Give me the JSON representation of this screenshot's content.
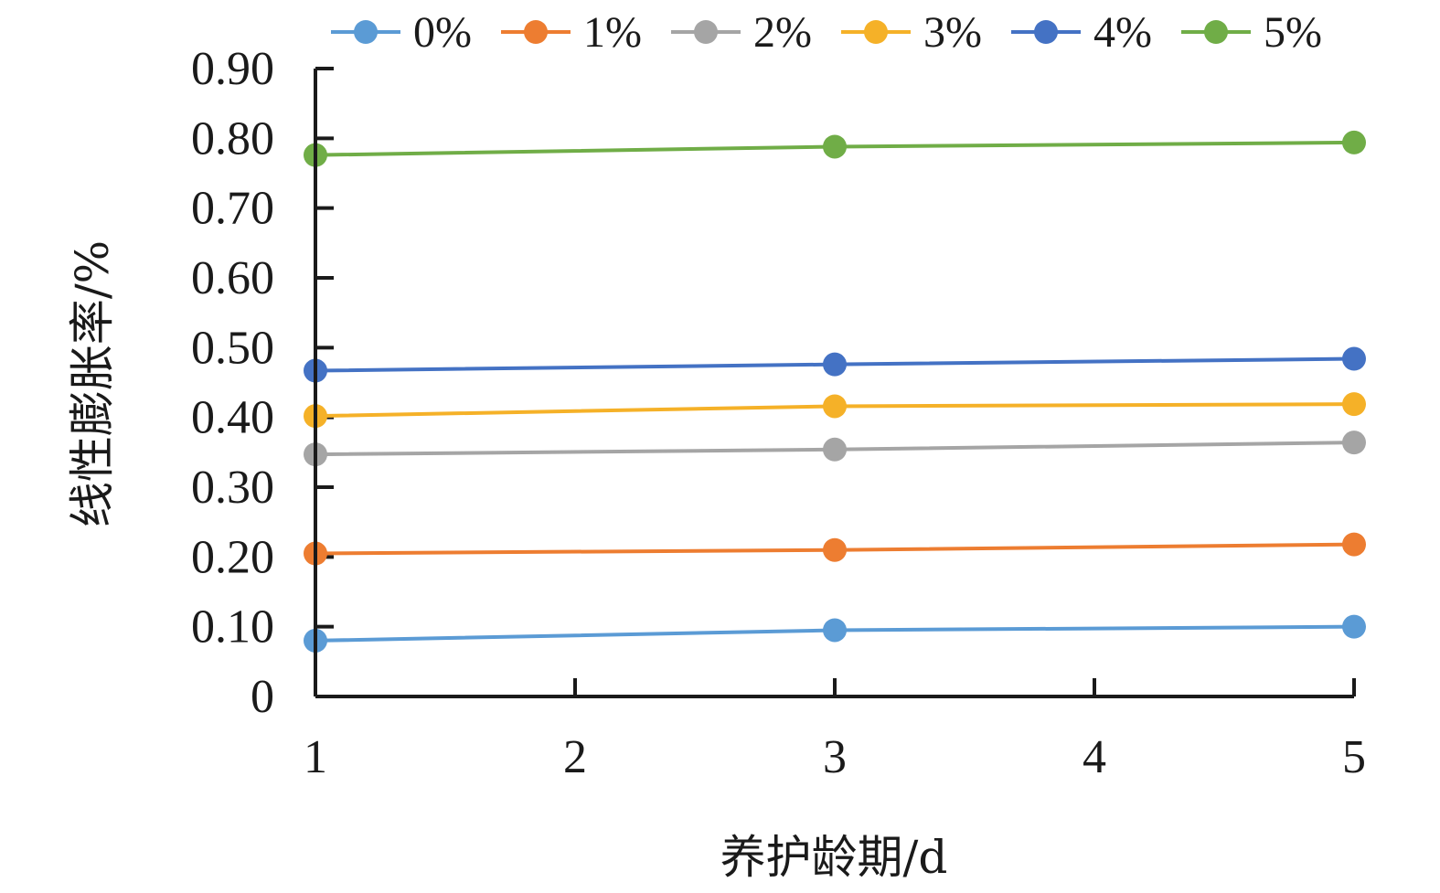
{
  "chart_data": {
    "type": "line",
    "xlabel": "养护龄期/d",
    "ylabel": "线性膨胀率/%",
    "x": [
      1,
      3,
      5
    ],
    "xlim": [
      1,
      5
    ],
    "ylim": [
      0,
      0.9
    ],
    "x_ticks": [
      "1",
      "2",
      "3",
      "4",
      "5"
    ],
    "y_ticks": [
      "0",
      "0.10",
      "0.20",
      "0.30",
      "0.40",
      "0.50",
      "0.60",
      "0.70",
      "0.80",
      "0.90"
    ],
    "grid": false,
    "legend_position": "top",
    "series": [
      {
        "name": "0%",
        "color": "#5B9BD5",
        "values": [
          0.08,
          0.095,
          0.1
        ]
      },
      {
        "name": "1%",
        "color": "#ED7D31",
        "values": [
          0.205,
          0.21,
          0.218
        ]
      },
      {
        "name": "2%",
        "color": "#A5A5A5",
        "values": [
          0.347,
          0.354,
          0.364
        ]
      },
      {
        "name": "3%",
        "color": "#F5B128",
        "values": [
          0.402,
          0.416,
          0.419
        ]
      },
      {
        "name": "4%",
        "color": "#4472C4",
        "values": [
          0.467,
          0.476,
          0.484
        ]
      },
      {
        "name": "5%",
        "color": "#70AD47",
        "values": [
          0.776,
          0.788,
          0.794
        ]
      }
    ]
  }
}
